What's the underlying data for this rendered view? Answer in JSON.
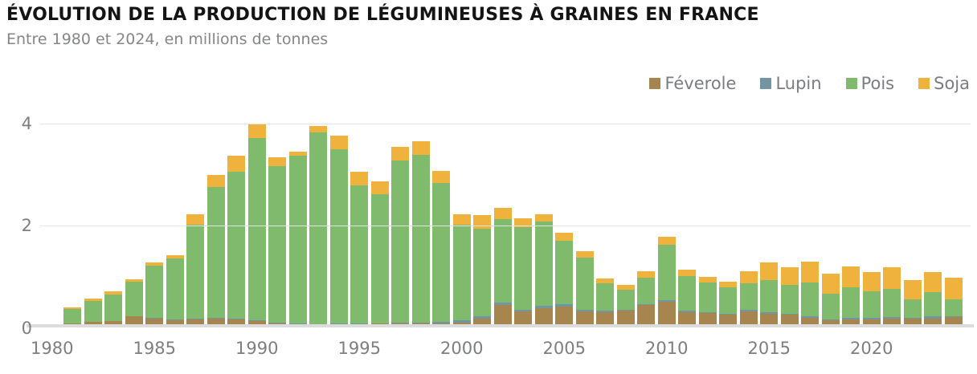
{
  "header": {
    "title": "ÉVOLUTION DE LA PRODUCTION DE LÉGUMINEUSES À GRAINES EN FRANCE",
    "subtitle": "Entre 1980 et 2024, en millions de tonnes"
  },
  "colors": {
    "feverole": "#A7854F",
    "lupin": "#7195A2",
    "pois": "#80BA6C",
    "soja": "#EFB23C",
    "axis_text": "#7D7E82",
    "gridline": "#E3E3E3",
    "baseline": "#DCDCDC",
    "title_text": "#141414",
    "subtitle_text": "#848587"
  },
  "chart_data": {
    "type": "bar",
    "stacked": true,
    "title": "ÉVOLUTION DE LA PRODUCTION DE LÉGUMINEUSES À GRAINES EN FRANCE",
    "subtitle": "Entre 1980 et 2024, en millions de tonnes",
    "unit": "millions de tonnes",
    "ylim": [
      0,
      4
    ],
    "yticks": [
      0,
      2,
      4
    ],
    "xticks": [
      1980,
      1985,
      1990,
      1995,
      2000,
      2005,
      2010,
      2015,
      2020
    ],
    "legend_position": "top-right",
    "grid": true,
    "x": [
      1980,
      1981,
      1982,
      1983,
      1984,
      1985,
      1986,
      1987,
      1988,
      1989,
      1990,
      1991,
      1992,
      1993,
      1994,
      1995,
      1996,
      1997,
      1998,
      1999,
      2000,
      2001,
      2002,
      2003,
      2004,
      2005,
      2006,
      2007,
      2008,
      2009,
      2010,
      2011,
      2012,
      2013,
      2014,
      2015,
      2016,
      2017,
      2018,
      2019,
      2020,
      2021,
      2022,
      2023,
      2024
    ],
    "series": [
      {
        "name": "Féverole",
        "color": "#A7854F",
        "values": [
          0,
          0.06,
          0.1,
          0.11,
          0.2,
          0.16,
          0.13,
          0.15,
          0.16,
          0.15,
          0.11,
          0.07,
          0.05,
          0.04,
          0.05,
          0.05,
          0.06,
          0.06,
          0.06,
          0.07,
          0.08,
          0.16,
          0.42,
          0.3,
          0.37,
          0.4,
          0.3,
          0.28,
          0.31,
          0.42,
          0.49,
          0.28,
          0.27,
          0.23,
          0.3,
          0.26,
          0.23,
          0.17,
          0.12,
          0.15,
          0.15,
          0.16,
          0.16,
          0.16,
          0.19
        ]
      },
      {
        "name": "Lupin",
        "color": "#7195A2",
        "values": [
          0,
          0,
          0,
          0,
          0,
          0.01,
          0.01,
          0.01,
          0.01,
          0.01,
          0.01,
          0.01,
          0.01,
          0.01,
          0.01,
          0.01,
          0.01,
          0.02,
          0.02,
          0.03,
          0.04,
          0.04,
          0.05,
          0.04,
          0.04,
          0.04,
          0.03,
          0.03,
          0.02,
          0.02,
          0.04,
          0.03,
          0.02,
          0.02,
          0.03,
          0.03,
          0.03,
          0.03,
          0.02,
          0.02,
          0.02,
          0.03,
          0.02,
          0.04,
          0.02
        ]
      },
      {
        "name": "Pois",
        "color": "#80BA6C",
        "values": [
          0,
          0.29,
          0.4,
          0.52,
          0.68,
          1.04,
          1.2,
          1.85,
          2.58,
          2.89,
          3.6,
          3.09,
          3.31,
          3.78,
          3.43,
          2.73,
          2.54,
          3.19,
          3.31,
          2.73,
          1.89,
          1.73,
          1.65,
          1.62,
          1.66,
          1.25,
          1.03,
          0.54,
          0.4,
          0.53,
          1.08,
          0.69,
          0.58,
          0.52,
          0.52,
          0.63,
          0.56,
          0.67,
          0.51,
          0.6,
          0.52,
          0.55,
          0.36,
          0.48,
          0.33
        ]
      },
      {
        "name": "Soja",
        "color": "#EFB23C",
        "values": [
          0,
          0.03,
          0.05,
          0.07,
          0.05,
          0.05,
          0.07,
          0.21,
          0.24,
          0.32,
          0.26,
          0.16,
          0.08,
          0.12,
          0.27,
          0.26,
          0.25,
          0.28,
          0.27,
          0.24,
          0.2,
          0.27,
          0.22,
          0.18,
          0.15,
          0.16,
          0.13,
          0.1,
          0.09,
          0.12,
          0.16,
          0.12,
          0.11,
          0.12,
          0.24,
          0.34,
          0.35,
          0.41,
          0.39,
          0.42,
          0.39,
          0.43,
          0.38,
          0.4,
          0.43
        ]
      }
    ]
  }
}
